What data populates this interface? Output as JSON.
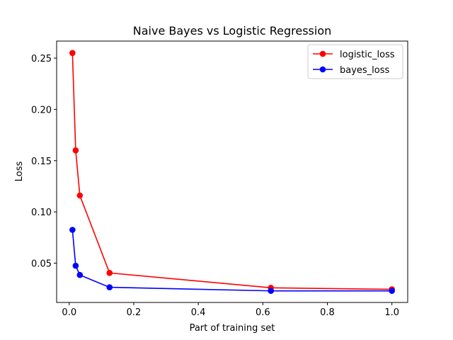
{
  "chart_data": {
    "type": "line",
    "title": "Naive Bayes vs Logistic Regression",
    "xlabel": "Part of training set",
    "ylabel": "Loss",
    "xlim": [
      -0.039,
      1.049
    ],
    "ylim": [
      0.0117,
      0.2666
    ],
    "xticks": [
      0.0,
      0.2,
      0.4,
      0.6,
      0.8,
      1.0
    ],
    "xtick_labels": [
      "0.0",
      "0.2",
      "0.4",
      "0.6",
      "0.8",
      "1.0"
    ],
    "yticks": [
      0.05,
      0.1,
      0.15,
      0.2,
      0.25
    ],
    "ytick_labels": [
      "0.05",
      "0.10",
      "0.15",
      "0.20",
      "0.25"
    ],
    "grid": false,
    "legend_position": "top-right",
    "series": [
      {
        "name": "logistic_loss",
        "color": "#ff0000",
        "marker": "circle",
        "x": [
          0.01,
          0.02,
          0.033,
          0.125,
          0.625,
          1.0
        ],
        "y": [
          0.255,
          0.16,
          0.116,
          0.0405,
          0.026,
          0.0245
        ]
      },
      {
        "name": "bayes_loss",
        "color": "#0000ff",
        "marker": "circle",
        "x": [
          0.01,
          0.02,
          0.033,
          0.125,
          0.625,
          1.0
        ],
        "y": [
          0.0825,
          0.0475,
          0.0385,
          0.0265,
          0.023,
          0.023
        ]
      }
    ]
  }
}
